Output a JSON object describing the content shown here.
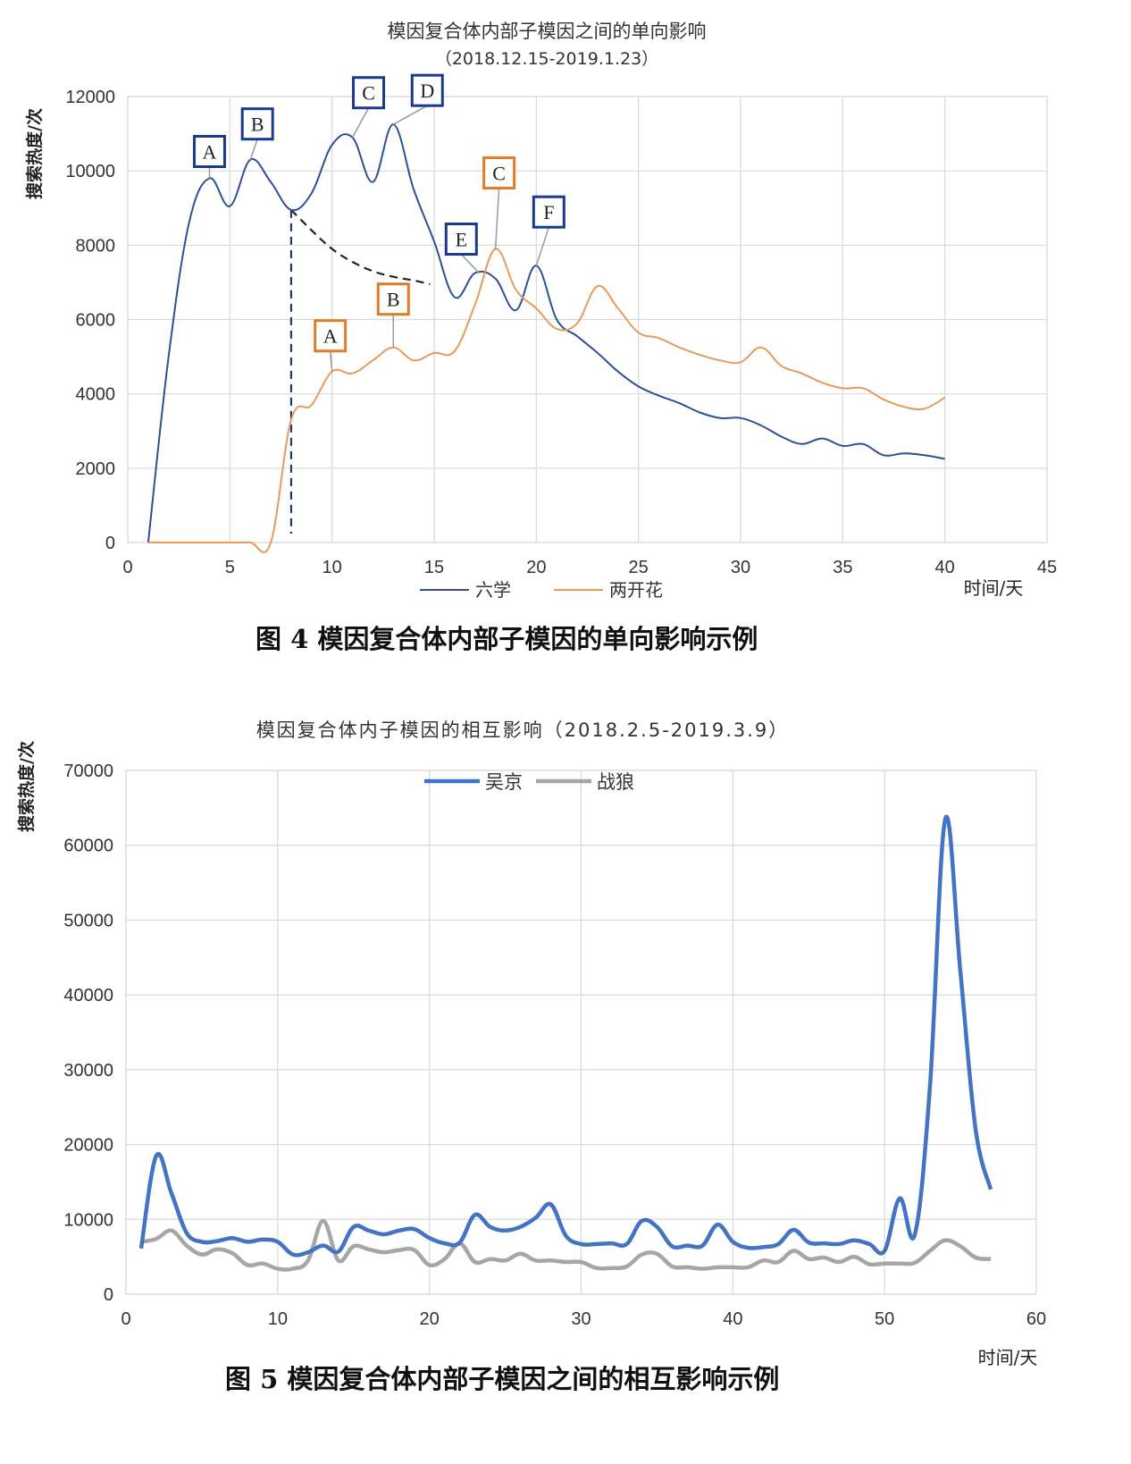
{
  "chart_data": [
    {
      "type": "line",
      "title": "模因复合体内部子模因之间的单向影响",
      "subtitle": "（2018.12.15-2019.1.23）",
      "ylabel": "搜索热度/次",
      "xlabel": "时间/天",
      "xlim": [
        0,
        45
      ],
      "ylim": [
        0,
        12000
      ],
      "xticks": [
        "0",
        "5",
        "10",
        "15",
        "20",
        "25",
        "30",
        "35",
        "40",
        "45"
      ],
      "yticks": [
        "0",
        "2000",
        "4000",
        "6000",
        "8000",
        "10000",
        "12000"
      ],
      "grid": true,
      "legend_position": "bottom",
      "series": [
        {
          "name": "六学",
          "color": "#2f4f9a",
          "x": [
            1,
            2,
            3,
            4,
            5,
            6,
            7,
            8,
            9,
            10,
            11,
            12,
            13,
            14,
            15,
            16,
            17,
            18,
            19,
            20,
            21,
            22,
            23,
            24,
            25,
            26,
            27,
            28,
            29,
            30,
            31,
            32,
            33,
            34,
            35,
            36,
            37,
            38,
            39,
            40
          ],
          "values": [
            0,
            5000,
            8600,
            9800,
            9050,
            10300,
            9700,
            8950,
            9400,
            10700,
            10900,
            9700,
            11250,
            9500,
            8100,
            6600,
            7250,
            7100,
            6250,
            7450,
            6000,
            5550,
            5100,
            4600,
            4200,
            3950,
            3750,
            3500,
            3350,
            3350,
            3150,
            2850,
            2650,
            2800,
            2600,
            2650,
            2350,
            2400,
            2350,
            2250
          ]
        },
        {
          "name": "两开花",
          "color": "#e89a5a",
          "x": [
            1,
            2,
            3,
            4,
            5,
            6,
            7,
            8,
            9,
            10,
            11,
            12,
            13,
            14,
            15,
            16,
            17,
            18,
            19,
            20,
            21,
            22,
            23,
            24,
            25,
            26,
            27,
            28,
            29,
            30,
            31,
            32,
            33,
            34,
            35,
            36,
            37,
            38,
            39,
            40
          ],
          "values": [
            0,
            0,
            0,
            0,
            0,
            0,
            0,
            3300,
            3700,
            4600,
            4550,
            4900,
            5250,
            4900,
            5100,
            5150,
            6400,
            7900,
            6800,
            6300,
            5750,
            5900,
            6900,
            6300,
            5650,
            5500,
            5250,
            5050,
            4900,
            4850,
            5250,
            4750,
            4550,
            4300,
            4150,
            4150,
            3850,
            3650,
            3600,
            3900
          ]
        }
      ],
      "annotations": [
        {
          "series": "六学",
          "label": "A",
          "x": 4,
          "y": 9800
        },
        {
          "series": "六学",
          "label": "B",
          "x": 6,
          "y": 10300
        },
        {
          "series": "六学",
          "label": "C",
          "x": 11,
          "y": 10900
        },
        {
          "series": "六学",
          "label": "D",
          "x": 13,
          "y": 11250
        },
        {
          "series": "六学",
          "label": "E",
          "x": 17.2,
          "y": 7250
        },
        {
          "series": "六学",
          "label": "F",
          "x": 20,
          "y": 7450
        },
        {
          "series": "两开花",
          "label": "A",
          "x": 10,
          "y": 4600
        },
        {
          "series": "两开花",
          "label": "B",
          "x": 13,
          "y": 5250
        },
        {
          "series": "两开花",
          "label": "C",
          "x": 18,
          "y": 7900
        }
      ],
      "reference_lines": {
        "vertical_dashed_x": 8,
        "decay_dashed_curve": {
          "x": [
            8,
            9,
            10,
            11,
            12,
            13,
            14,
            14.8
          ],
          "y": [
            8950,
            8400,
            7900,
            7550,
            7300,
            7150,
            7050,
            6950
          ]
        }
      },
      "caption": "图 4  模因复合体内部子模因的单向影响示例"
    },
    {
      "type": "line",
      "title": "模因复合体内子模因的相互影响（2018.2.5-2019.3.9）",
      "ylabel": "搜索热度/次",
      "xlabel": "时间/天",
      "xlim": [
        0,
        60
      ],
      "ylim": [
        0,
        70000
      ],
      "xticks": [
        "0",
        "10",
        "20",
        "30",
        "40",
        "50",
        "60"
      ],
      "yticks": [
        "0",
        "10000",
        "20000",
        "30000",
        "40000",
        "50000",
        "60000",
        "70000"
      ],
      "grid": true,
      "legend_position": "top",
      "series": [
        {
          "name": "吴京",
          "color": "#4472c4",
          "x": [
            1,
            2,
            3,
            4,
            5,
            6,
            7,
            8,
            9,
            10,
            11,
            12,
            13,
            14,
            15,
            16,
            17,
            18,
            19,
            20,
            21,
            22,
            23,
            24,
            25,
            26,
            27,
            28,
            29,
            30,
            31,
            32,
            33,
            34,
            35,
            36,
            37,
            38,
            39,
            40,
            41,
            42,
            43,
            44,
            45,
            46,
            47,
            48,
            49,
            50,
            51,
            52,
            53,
            54,
            55,
            56,
            57
          ],
          "values": [
            6100,
            18500,
            13500,
            8200,
            7000,
            7100,
            7500,
            7000,
            7300,
            7000,
            5300,
            5600,
            6500,
            5700,
            9000,
            8500,
            8000,
            8500,
            8700,
            7500,
            6800,
            6900,
            10600,
            9000,
            8500,
            9000,
            10200,
            12000,
            7800,
            6700,
            6700,
            6800,
            6700,
            9800,
            9000,
            6400,
            6500,
            6500,
            9300,
            7000,
            6200,
            6300,
            6700,
            8600,
            6900,
            6800,
            6700,
            7200,
            6700,
            5800,
            12800,
            8000,
            28000,
            63500,
            43000,
            22000,
            14000
          ]
        },
        {
          "name": "战狼",
          "color": "#a6a6a6",
          "x": [
            1,
            2,
            3,
            4,
            5,
            6,
            7,
            8,
            9,
            10,
            11,
            12,
            13,
            14,
            15,
            16,
            17,
            18,
            19,
            20,
            21,
            22,
            23,
            24,
            25,
            26,
            27,
            28,
            29,
            30,
            31,
            32,
            33,
            34,
            35,
            36,
            37,
            38,
            39,
            40,
            41,
            42,
            43,
            44,
            45,
            46,
            47,
            48,
            49,
            50,
            51,
            52,
            53,
            54,
            55,
            56,
            57
          ],
          "values": [
            7000,
            7400,
            8500,
            6500,
            5300,
            6000,
            5500,
            3900,
            4100,
            3400,
            3400,
            4500,
            9800,
            4500,
            6400,
            6000,
            5600,
            5900,
            5900,
            3900,
            4700,
            6800,
            4300,
            4700,
            4500,
            5400,
            4500,
            4500,
            4300,
            4300,
            3500,
            3500,
            3700,
            5300,
            5400,
            3700,
            3600,
            3400,
            3600,
            3600,
            3600,
            4500,
            4300,
            5800,
            4700,
            4900,
            4300,
            5000,
            4000,
            4100,
            4100,
            4200,
            5800,
            7200,
            6400,
            4900,
            4700
          ]
        }
      ],
      "caption": "图 5  模因复合体内部子模因之间的相互影响示例"
    }
  ]
}
